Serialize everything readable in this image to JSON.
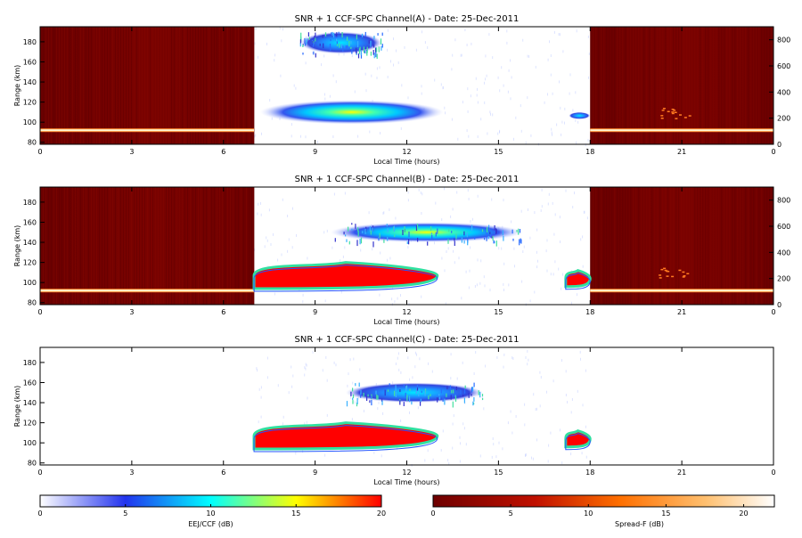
{
  "panels": [
    {
      "title": "SNR + 1 CCF-SPC Channel(A) - Date: 25-Dec-2011",
      "xlabel": "Local Time (hours)",
      "ylabel": "Range (km)",
      "has_right_axis": true
    },
    {
      "title": "SNR + 1 CCF-SPC Channel(B) - Date: 25-Dec-2011",
      "xlabel": "Local Time (hours)",
      "ylabel": "Range (km)",
      "has_right_axis": true
    },
    {
      "title": "SNR + 1 CCF-SPC Channel(C) - Date: 25-Dec-2011",
      "xlabel": "Local Time (hours)",
      "ylabel": "Range (km)",
      "has_right_axis": false
    }
  ],
  "x_ticks": [
    "0",
    "3",
    "6",
    "9",
    "12",
    "15",
    "18",
    "21",
    "0"
  ],
  "y_ticks": [
    "80",
    "100",
    "120",
    "140",
    "160",
    "180"
  ],
  "right_ticks": [
    "0",
    "200",
    "400",
    "600",
    "800"
  ],
  "colorbars": [
    {
      "label": "EEJ/CCF (dB)",
      "ticks": [
        "0",
        "5",
        "10",
        "15",
        "20"
      ],
      "colors": [
        "#ffffff",
        "#2233ee",
        "#00ffff",
        "#ffff00",
        "#ff0000"
      ]
    },
    {
      "label": "Spread-F (dB)",
      "ticks": [
        "0",
        "5",
        "10",
        "15",
        "20"
      ],
      "colors": [
        "#6e0000",
        "#c01000",
        "#ff7000",
        "#ffc070",
        "#ffffff"
      ]
    }
  ],
  "chart_data": [
    {
      "type": "heatmap",
      "title": "SNR + 1 CCF-SPC Channel(A) - Date: 25-Dec-2011",
      "xlabel": "Local Time (hours)",
      "ylabel": "Range (km)",
      "xlim": [
        0,
        24
      ],
      "ylim": [
        78,
        195
      ],
      "y2lim": [
        0,
        900
      ],
      "night_blocks": [
        [
          0,
          7
        ],
        [
          18,
          24
        ]
      ],
      "features": [
        {
          "x": [
            8.5,
            11.2
          ],
          "y": [
            168,
            190
          ],
          "max_db": 8
        },
        {
          "x": [
            7.2,
            13.2
          ],
          "y": [
            98,
            122
          ],
          "max_db": 13
        },
        {
          "x": [
            17.3,
            18
          ],
          "y": [
            103,
            110
          ],
          "max_db": 5
        }
      ]
    },
    {
      "type": "heatmap",
      "title": "SNR + 1 CCF-SPC Channel(B) - Date: 25-Dec-2011",
      "xlabel": "Local Time (hours)",
      "ylabel": "Range (km)",
      "xlim": [
        0,
        24
      ],
      "ylim": [
        78,
        195
      ],
      "y2lim": [
        0,
        900
      ],
      "night_blocks": [
        [
          0,
          7
        ],
        [
          18,
          24
        ]
      ],
      "features": [
        {
          "x": [
            7,
            13
          ],
          "y": [
            94,
            120
          ],
          "max_db": 20
        },
        {
          "x": [
            17.2,
            18
          ],
          "y": [
            96,
            112
          ],
          "max_db": 20
        },
        {
          "x": [
            9.5,
            15.8
          ],
          "y": [
            140,
            160
          ],
          "max_db": 10
        }
      ]
    },
    {
      "type": "heatmap",
      "title": "SNR + 1 CCF-SPC Channel(C) - Date: 25-Dec-2011",
      "xlabel": "Local Time (hours)",
      "ylabel": "Range (km)",
      "xlim": [
        0,
        24
      ],
      "ylim": [
        78,
        195
      ],
      "features": [
        {
          "x": [
            7,
            13
          ],
          "y": [
            94,
            120
          ],
          "max_db": 20
        },
        {
          "x": [
            17.2,
            18
          ],
          "y": [
            96,
            112
          ],
          "max_db": 20
        },
        {
          "x": [
            10,
            14.5
          ],
          "y": [
            140,
            160
          ],
          "max_db": 8
        }
      ]
    }
  ]
}
